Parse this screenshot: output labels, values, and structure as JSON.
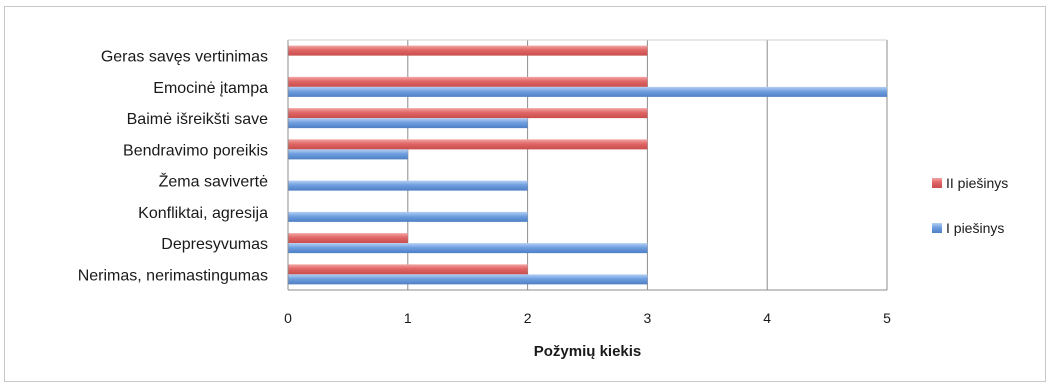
{
  "chart_data": {
    "type": "bar",
    "orientation": "horizontal",
    "categories": [
      "Geras savęs vertinimas",
      "Emocinė įtampa ",
      "Baimė išreikšti save",
      "Bendravimo poreikis",
      "Žema savivertė",
      "Konfliktai, agresija",
      "Depresyvumas",
      "Nerimas, nerimastingumas"
    ],
    "series": [
      {
        "name": "II piešinys",
        "color": "#e06666",
        "values": [
          3,
          3,
          3,
          3,
          0,
          0,
          1,
          2
        ]
      },
      {
        "name": "I piešinys",
        "color": "#6f9fe0",
        "values": [
          0,
          5,
          2,
          1,
          2,
          2,
          3,
          3
        ]
      }
    ],
    "xlabel": "Požymių kiekis",
    "xlim": [
      0,
      5
    ],
    "xticks": [
      "0",
      "1",
      "2",
      "3",
      "4",
      "5"
    ],
    "grid": true,
    "legend_position": "right"
  }
}
